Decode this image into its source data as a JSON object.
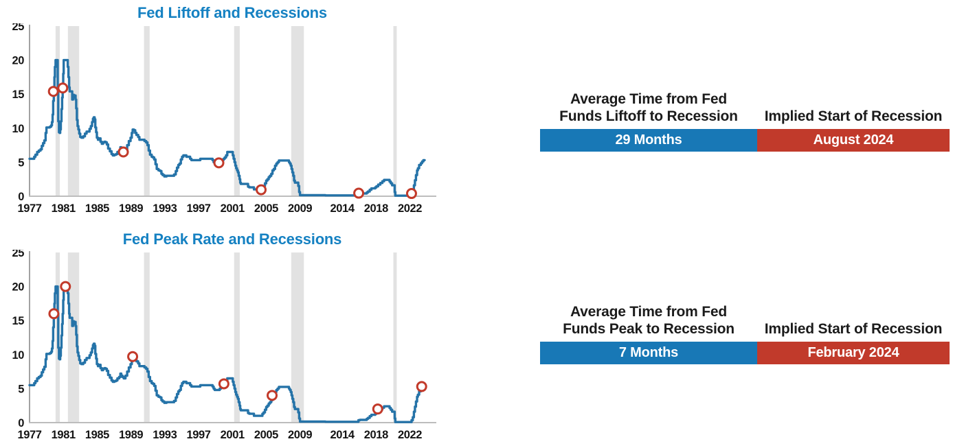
{
  "page": {
    "background": "#ffffff"
  },
  "colors": {
    "title_blue": "#1581C2",
    "line_blue": "#2573A8",
    "marker_red": "#C23A2A",
    "recession_band_gray": "#E2E2E2",
    "table_blue": "#1878B6",
    "table_red": "#C13A2B",
    "table_value_text": "#FFFFFF",
    "header_text": "#1B1B1B",
    "tick_text": "#141414",
    "y_axis_line": "#8A8A8A",
    "x_axis_line": "#BDBDBD"
  },
  "rate_series": {
    "points": [
      [
        1977.0,
        5.5
      ],
      [
        1977.4,
        5.5
      ],
      [
        1977.55,
        5.8
      ],
      [
        1977.7,
        6.1
      ],
      [
        1977.9,
        6.5
      ],
      [
        1978.1,
        6.7
      ],
      [
        1978.3,
        6.9
      ],
      [
        1978.45,
        7.4
      ],
      [
        1978.6,
        7.8
      ],
      [
        1978.75,
        8.2
      ],
      [
        1978.9,
        9.3
      ],
      [
        1979.0,
        10.1
      ],
      [
        1979.2,
        10.1
      ],
      [
        1979.4,
        10.2
      ],
      [
        1979.55,
        10.4
      ],
      [
        1979.65,
        10.9
      ],
      [
        1979.73,
        12.0
      ],
      [
        1979.8,
        14.0
      ],
      [
        1979.87,
        15.6
      ],
      [
        1979.94,
        17.5
      ],
      [
        1980.0,
        19.0
      ],
      [
        1980.08,
        20.0
      ],
      [
        1980.28,
        20.0
      ],
      [
        1980.33,
        16.0
      ],
      [
        1980.4,
        11.0
      ],
      [
        1980.48,
        9.4
      ],
      [
        1980.56,
        9.3
      ],
      [
        1980.63,
        9.8
      ],
      [
        1980.7,
        11.0
      ],
      [
        1980.78,
        12.8
      ],
      [
        1980.85,
        14.5
      ],
      [
        1980.92,
        16.0
      ],
      [
        1980.98,
        18.0
      ],
      [
        1981.04,
        20.0
      ],
      [
        1981.45,
        20.0
      ],
      [
        1981.52,
        19.0
      ],
      [
        1981.6,
        17.5
      ],
      [
        1981.68,
        16.0
      ],
      [
        1981.75,
        15.4
      ],
      [
        1981.95,
        15.4
      ],
      [
        1982.05,
        14.2
      ],
      [
        1982.15,
        14.9
      ],
      [
        1982.25,
        14.5
      ],
      [
        1982.35,
        14.8
      ],
      [
        1982.45,
        14.2
      ],
      [
        1982.52,
        12.9
      ],
      [
        1982.6,
        11.2
      ],
      [
        1982.68,
        10.3
      ],
      [
        1982.78,
        9.8
      ],
      [
        1982.88,
        9.2
      ],
      [
        1983.0,
        8.7
      ],
      [
        1983.15,
        8.6
      ],
      [
        1983.35,
        8.8
      ],
      [
        1983.55,
        9.2
      ],
      [
        1983.75,
        9.5
      ],
      [
        1983.95,
        9.5
      ],
      [
        1984.1,
        9.9
      ],
      [
        1984.25,
        10.3
      ],
      [
        1984.4,
        10.9
      ],
      [
        1984.5,
        11.4
      ],
      [
        1984.6,
        11.6
      ],
      [
        1984.7,
        11.3
      ],
      [
        1984.78,
        10.1
      ],
      [
        1984.88,
        9.4
      ],
      [
        1984.97,
        8.6
      ],
      [
        1985.1,
        8.3
      ],
      [
        1985.25,
        8.5
      ],
      [
        1985.4,
        8.0
      ],
      [
        1985.55,
        7.7
      ],
      [
        1985.7,
        7.9
      ],
      [
        1985.85,
        8.0
      ],
      [
        1986.0,
        7.9
      ],
      [
        1986.15,
        7.6
      ],
      [
        1986.3,
        7.0
      ],
      [
        1986.5,
        6.6
      ],
      [
        1986.7,
        6.2
      ],
      [
        1986.85,
        6.0
      ],
      [
        1987.05,
        6.1
      ],
      [
        1987.25,
        6.2
      ],
      [
        1987.4,
        6.5
      ],
      [
        1987.6,
        6.7
      ],
      [
        1987.75,
        7.2
      ],
      [
        1987.85,
        6.9
      ],
      [
        1988.0,
        6.7
      ],
      [
        1988.15,
        6.5
      ],
      [
        1988.35,
        6.9
      ],
      [
        1988.55,
        7.5
      ],
      [
        1988.75,
        8.1
      ],
      [
        1988.95,
        8.6
      ],
      [
        1989.1,
        9.3
      ],
      [
        1989.2,
        9.8
      ],
      [
        1989.35,
        9.7
      ],
      [
        1989.5,
        9.3
      ],
      [
        1989.65,
        9.0
      ],
      [
        1989.85,
        8.7
      ],
      [
        1990.0,
        8.3
      ],
      [
        1990.3,
        8.3
      ],
      [
        1990.6,
        8.1
      ],
      [
        1990.8,
        7.9
      ],
      [
        1990.95,
        7.5
      ],
      [
        1991.1,
        6.7
      ],
      [
        1991.25,
        6.1
      ],
      [
        1991.45,
        5.8
      ],
      [
        1991.6,
        5.7
      ],
      [
        1991.75,
        5.4
      ],
      [
        1991.9,
        4.7
      ],
      [
        1992.05,
        4.0
      ],
      [
        1992.25,
        3.8
      ],
      [
        1992.45,
        3.7
      ],
      [
        1992.6,
        3.3
      ],
      [
        1992.75,
        3.1
      ],
      [
        1992.95,
        2.9
      ],
      [
        1993.2,
        3.0
      ],
      [
        1993.9,
        3.0
      ],
      [
        1994.1,
        3.2
      ],
      [
        1994.3,
        3.7
      ],
      [
        1994.45,
        4.2
      ],
      [
        1994.6,
        4.6
      ],
      [
        1994.75,
        4.8
      ],
      [
        1994.9,
        5.4
      ],
      [
        1995.05,
        5.8
      ],
      [
        1995.2,
        6.0
      ],
      [
        1995.45,
        6.0
      ],
      [
        1995.55,
        5.8
      ],
      [
        1995.85,
        5.8
      ],
      [
        1996.0,
        5.5
      ],
      [
        1996.15,
        5.3
      ],
      [
        1996.4,
        5.3
      ],
      [
        1996.7,
        5.3
      ],
      [
        1997.0,
        5.3
      ],
      [
        1997.2,
        5.5
      ],
      [
        1997.5,
        5.5
      ],
      [
        1997.8,
        5.5
      ],
      [
        1998.1,
        5.5
      ],
      [
        1998.45,
        5.5
      ],
      [
        1998.65,
        5.3
      ],
      [
        1998.78,
        5.0
      ],
      [
        1998.9,
        4.8
      ],
      [
        1999.1,
        4.8
      ],
      [
        1999.35,
        4.8
      ],
      [
        1999.5,
        5.0
      ],
      [
        1999.65,
        5.2
      ],
      [
        1999.8,
        5.3
      ],
      [
        1999.95,
        5.5
      ],
      [
        2000.1,
        5.7
      ],
      [
        2000.25,
        6.0
      ],
      [
        2000.4,
        6.5
      ],
      [
        2000.95,
        6.5
      ],
      [
        2001.05,
        6.0
      ],
      [
        2001.15,
        5.5
      ],
      [
        2001.25,
        5.0
      ],
      [
        2001.35,
        4.5
      ],
      [
        2001.45,
        4.1
      ],
      [
        2001.55,
        3.8
      ],
      [
        2001.65,
        3.5
      ],
      [
        2001.75,
        3.0
      ],
      [
        2001.85,
        2.5
      ],
      [
        2001.93,
        2.0
      ],
      [
        2002.0,
        1.8
      ],
      [
        2002.6,
        1.8
      ],
      [
        2002.85,
        1.4
      ],
      [
        2003.0,
        1.3
      ],
      [
        2003.4,
        1.3
      ],
      [
        2003.55,
        1.0
      ],
      [
        2004.45,
        1.0
      ],
      [
        2004.55,
        1.3
      ],
      [
        2004.7,
        1.5
      ],
      [
        2004.85,
        1.9
      ],
      [
        2005.0,
        2.3
      ],
      [
        2005.15,
        2.5
      ],
      [
        2005.3,
        2.8
      ],
      [
        2005.45,
        3.0
      ],
      [
        2005.6,
        3.3
      ],
      [
        2005.75,
        3.8
      ],
      [
        2005.9,
        4.0
      ],
      [
        2006.05,
        4.5
      ],
      [
        2006.2,
        4.8
      ],
      [
        2006.35,
        5.0
      ],
      [
        2006.5,
        5.25
      ],
      [
        2007.6,
        5.25
      ],
      [
        2007.7,
        5.0
      ],
      [
        2007.8,
        4.8
      ],
      [
        2007.9,
        4.5
      ],
      [
        2008.0,
        4.0
      ],
      [
        2008.1,
        3.5
      ],
      [
        2008.2,
        3.0
      ],
      [
        2008.3,
        2.3
      ],
      [
        2008.4,
        2.0
      ],
      [
        2008.7,
        2.0
      ],
      [
        2008.8,
        1.5
      ],
      [
        2008.9,
        0.6
      ],
      [
        2009.0,
        0.15
      ],
      [
        2012.0,
        0.12
      ],
      [
        2015.8,
        0.12
      ],
      [
        2015.92,
        0.35
      ],
      [
        2016.1,
        0.4
      ],
      [
        2016.9,
        0.55
      ],
      [
        2017.05,
        0.7
      ],
      [
        2017.25,
        0.95
      ],
      [
        2017.45,
        1.15
      ],
      [
        2017.9,
        1.3
      ],
      [
        2018.05,
        1.45
      ],
      [
        2018.25,
        1.7
      ],
      [
        2018.5,
        1.95
      ],
      [
        2018.75,
        2.2
      ],
      [
        2018.95,
        2.4
      ],
      [
        2019.5,
        2.4
      ],
      [
        2019.6,
        2.15
      ],
      [
        2019.75,
        1.9
      ],
      [
        2019.9,
        1.6
      ],
      [
        2020.1,
        1.6
      ],
      [
        2020.2,
        0.6
      ],
      [
        2020.28,
        0.08
      ],
      [
        2021.9,
        0.08
      ],
      [
        2022.05,
        0.08
      ],
      [
        2022.2,
        0.35
      ],
      [
        2022.35,
        0.8
      ],
      [
        2022.48,
        1.6
      ],
      [
        2022.6,
        2.35
      ],
      [
        2022.72,
        3.1
      ],
      [
        2022.85,
        3.8
      ],
      [
        2022.95,
        4.1
      ],
      [
        2023.1,
        4.6
      ],
      [
        2023.3,
        4.85
      ],
      [
        2023.45,
        5.1
      ],
      [
        2023.6,
        5.3
      ],
      [
        2023.75,
        5.3
      ]
    ]
  },
  "chart_data": [
    {
      "type": "line",
      "title": "Fed Liftoff and Recessions",
      "x_range": [
        1977,
        2024
      ],
      "ylim": [
        0,
        25
      ],
      "yticks": [
        0,
        5,
        10,
        15,
        20,
        25
      ],
      "xtick_labels": [
        1977,
        1981,
        1985,
        1989,
        1993,
        1997,
        2001,
        2005,
        2009,
        2014,
        2018,
        2022
      ],
      "grid": false,
      "legend": false,
      "series": "rate_series",
      "recession_bands": [
        [
          1980.08,
          1980.58
        ],
        [
          1981.54,
          1982.87
        ],
        [
          1990.54,
          1991.21
        ],
        [
          2001.21,
          2001.87
        ],
        [
          2007.96,
          2009.46
        ],
        [
          2020.05,
          2020.45
        ]
      ],
      "markers": {
        "name": "liftoff",
        "points": [
          [
            1979.82,
            15.4
          ],
          [
            1980.93,
            15.9
          ],
          [
            1988.1,
            6.5
          ],
          [
            1999.4,
            4.9
          ],
          [
            2004.4,
            0.95
          ],
          [
            2015.95,
            0.45
          ],
          [
            2022.2,
            0.4
          ]
        ]
      }
    },
    {
      "type": "line",
      "title": "Fed Peak Rate and Recessions",
      "x_range": [
        1977,
        2024
      ],
      "ylim": [
        0,
        25
      ],
      "yticks": [
        0,
        5,
        10,
        15,
        20,
        25
      ],
      "xtick_labels": [
        1977,
        1981,
        1985,
        1989,
        1993,
        1997,
        2001,
        2005,
        2009,
        2014,
        2018,
        2022
      ],
      "grid": false,
      "legend": false,
      "series": "rate_series",
      "recession_bands": [
        [
          1980.08,
          1980.58
        ],
        [
          1981.54,
          1982.87
        ],
        [
          1990.54,
          1991.21
        ],
        [
          2001.21,
          2001.87
        ],
        [
          2007.96,
          2009.46
        ],
        [
          2020.05,
          2020.45
        ]
      ],
      "markers": {
        "name": "peak",
        "points": [
          [
            1979.88,
            16.0
          ],
          [
            1981.25,
            20.0
          ],
          [
            1989.2,
            9.7
          ],
          [
            2000.0,
            5.7
          ],
          [
            2005.7,
            4.0
          ],
          [
            2018.2,
            2.0
          ],
          [
            2023.4,
            5.3
          ]
        ]
      }
    }
  ],
  "tables": [
    {
      "col1_header_lines": [
        "Average Time from Fed",
        "Funds Liftoff to Recession"
      ],
      "col2_header": "Implied Start of Recession",
      "col1_value": "29 Months",
      "col2_value": "August 2024"
    },
    {
      "col1_header_lines": [
        "Average Time from Fed",
        "Funds Peak to Recession"
      ],
      "col2_header": "Implied Start of Recession",
      "col1_value": "7 Months",
      "col2_value": "February 2024"
    }
  ]
}
